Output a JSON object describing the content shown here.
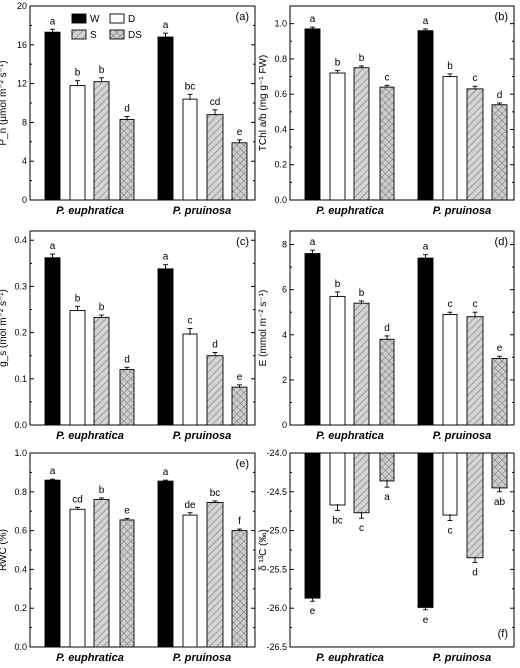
{
  "chart_data": {
    "type": "bar",
    "legend": {
      "placement": "top-left of panel (a)",
      "entries": [
        "W",
        "D",
        "S",
        "DS"
      ]
    },
    "series_styles": [
      {
        "fill": "#000000",
        "pattern": "solid"
      },
      {
        "fill": "#ffffff",
        "pattern": "solid"
      },
      {
        "fill": "#d0d0d0",
        "pattern": "diagonal-hatch"
      },
      {
        "fill": "#c8c8c8",
        "pattern": "cross-hatch"
      }
    ],
    "categories": [
      "P. euphratica",
      "P. pruinosa"
    ],
    "panels": [
      {
        "id": "a",
        "label": "(a)",
        "ylabel": "P_n (µmol m⁻² s⁻¹)",
        "ylim": [
          0,
          20
        ],
        "yticks": [
          "0",
          "4",
          "8",
          "12",
          "16",
          "20"
        ],
        "ytick_values": [
          0,
          4,
          8,
          12,
          16,
          20
        ],
        "values": [
          [
            17.3,
            11.8,
            12.2,
            8.3
          ],
          [
            16.8,
            10.4,
            8.8,
            5.9
          ]
        ],
        "errors": [
          [
            0.3,
            0.5,
            0.4,
            0.3
          ],
          [
            0.4,
            0.5,
            0.5,
            0.3
          ]
        ],
        "letters": [
          [
            "a",
            "b",
            "b",
            "d"
          ],
          [
            "a",
            "bc",
            "cd",
            "e"
          ]
        ],
        "negative": false
      },
      {
        "id": "b",
        "label": "(b)",
        "ylabel": "TChl a/b (mg g⁻¹ FW)",
        "ylim": [
          0,
          1.1
        ],
        "yticks": [
          "0.0",
          "0.2",
          "0.4",
          "0.6",
          "0.8",
          "1.0"
        ],
        "ytick_values": [
          0,
          0.2,
          0.4,
          0.6,
          0.8,
          1.0
        ],
        "values": [
          [
            0.97,
            0.72,
            0.75,
            0.64
          ],
          [
            0.96,
            0.7,
            0.63,
            0.54
          ]
        ],
        "errors": [
          [
            0.01,
            0.015,
            0.01,
            0.01
          ],
          [
            0.01,
            0.015,
            0.015,
            0.01
          ]
        ],
        "letters": [
          [
            "a",
            "b",
            "b",
            "c"
          ],
          [
            "a",
            "b",
            "c",
            "d"
          ]
        ],
        "negative": false
      },
      {
        "id": "c",
        "label": "(c)",
        "ylabel": "g_s (mol m⁻² s⁻¹)",
        "ylim": [
          0,
          0.42
        ],
        "yticks": [
          "0.0",
          "0.1",
          "0.2",
          "0.3",
          "0.4"
        ],
        "ytick_values": [
          0,
          0.1,
          0.2,
          0.3,
          0.4
        ],
        "values": [
          [
            0.362,
            0.248,
            0.233,
            0.12
          ],
          [
            0.338,
            0.197,
            0.15,
            0.082
          ]
        ],
        "errors": [
          [
            0.008,
            0.009,
            0.005,
            0.005
          ],
          [
            0.009,
            0.012,
            0.007,
            0.005
          ]
        ],
        "letters": [
          [
            "a",
            "b",
            "b",
            "d"
          ],
          [
            "a",
            "c",
            "d",
            "e"
          ]
        ],
        "negative": false
      },
      {
        "id": "d",
        "label": "(d)",
        "ylabel": "E (mmol m⁻² s⁻¹)",
        "ylim": [
          0,
          8.6
        ],
        "yticks": [
          "0",
          "2",
          "4",
          "6",
          "8"
        ],
        "ytick_values": [
          0,
          2,
          4,
          6,
          8
        ],
        "values": [
          [
            7.6,
            5.7,
            5.4,
            3.8
          ],
          [
            7.4,
            4.9,
            4.8,
            2.95
          ]
        ],
        "errors": [
          [
            0.15,
            0.2,
            0.1,
            0.15
          ],
          [
            0.15,
            0.1,
            0.2,
            0.1
          ]
        ],
        "letters": [
          [
            "a",
            "b",
            "b",
            "d"
          ],
          [
            "a",
            "c",
            "c",
            "e"
          ]
        ],
        "negative": false
      },
      {
        "id": "e",
        "label": "(e)",
        "ylabel": "RWC (%)",
        "ylim": [
          0,
          1.0
        ],
        "yticks": [
          "0.0",
          "0.2",
          "0.4",
          "0.6",
          "0.8",
          "1.0"
        ],
        "ytick_values": [
          0,
          0.2,
          0.4,
          0.6,
          0.8,
          1.0
        ],
        "values": [
          [
            0.86,
            0.71,
            0.76,
            0.655
          ],
          [
            0.855,
            0.68,
            0.745,
            0.6
          ]
        ],
        "errors": [
          [
            0.005,
            0.01,
            0.008,
            0.008
          ],
          [
            0.005,
            0.012,
            0.008,
            0.008
          ]
        ],
        "letters": [
          [
            "a",
            "cd",
            "b",
            "e"
          ],
          [
            "a",
            "de",
            "bc",
            "f"
          ]
        ],
        "negative": false
      },
      {
        "id": "f",
        "label": "(f)",
        "ylabel": "δ ¹³C (‰)",
        "ylim": [
          -26.5,
          -24.0
        ],
        "yticks": [
          "-26.5",
          "-26.0",
          "-25.5",
          "-25.0",
          "-24.5",
          "-24.0"
        ],
        "ytick_values": [
          -26.5,
          -26.0,
          -25.5,
          -25.0,
          -24.5,
          -24.0
        ],
        "values": [
          [
            -25.87,
            -24.67,
            -24.77,
            -24.36
          ],
          [
            -25.99,
            -24.8,
            -25.35,
            -24.45
          ]
        ],
        "errors": [
          [
            0.04,
            0.07,
            0.07,
            0.08
          ],
          [
            0.03,
            0.07,
            0.06,
            0.05
          ]
        ],
        "letters": [
          [
            "e",
            "bc",
            "c",
            "a"
          ],
          [
            "e",
            "c",
            "d",
            "ab"
          ]
        ],
        "negative": true
      }
    ]
  }
}
